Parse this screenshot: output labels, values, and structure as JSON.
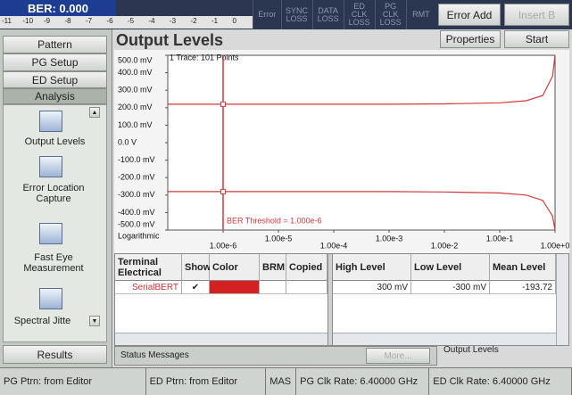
{
  "top": {
    "ber_label": "BER: 0.000",
    "ber_scale": [
      -11,
      -10,
      -9,
      -8,
      -7,
      -6,
      -5,
      -4,
      -3,
      -2,
      -1,
      0
    ],
    "indicators": [
      "Error",
      "SYNC LOSS",
      "DATA LOSS",
      "ED CLK LOSS",
      "PG CLK LOSS",
      "RMT"
    ],
    "buttons": [
      "Error Add",
      "Insert B"
    ]
  },
  "sidebar": {
    "buttons": [
      "Pattern",
      "PG Setup",
      "ED Setup",
      "Analysis"
    ],
    "tools": [
      "Output Levels",
      "Error Location Capture",
      "Fast Eye Measurement",
      "Spectral Jitte"
    ],
    "results": "Results"
  },
  "main": {
    "title": "Output Levels",
    "buttons": [
      "Properties",
      "Start"
    ]
  },
  "plot": {
    "type": "line",
    "trace_info": "1 Trace: 101 Points",
    "xscale": "log",
    "xscale_label": "Logarithmic",
    "threshold": {
      "value": 1e-06,
      "label": "BER Threshold = 1.000e-6"
    },
    "xlim": [
      1e-07,
      1
    ],
    "ylim": [
      -500,
      500
    ],
    "xticks": [
      {
        "value": 1e-06,
        "label": "1.00e-6"
      },
      {
        "value": 1e-05,
        "label": "1.00e-5"
      },
      {
        "value": 0.0001,
        "label": "1.00e-4"
      },
      {
        "value": 0.001,
        "label": "1.00e-3"
      },
      {
        "value": 0.01,
        "label": "1.00e-2"
      },
      {
        "value": 0.1,
        "label": "1.00e-1"
      },
      {
        "value": 1,
        "label": "1.00e+0"
      }
    ],
    "yticks": [
      {
        "value": 500,
        "label": "500.0 mV"
      },
      {
        "value": 400,
        "label": "400.0 mV"
      },
      {
        "value": 300,
        "label": "300.0 mV"
      },
      {
        "value": 200,
        "label": "200.0 mV"
      },
      {
        "value": 100,
        "label": "100.0 mV"
      },
      {
        "value": 0,
        "label": "0.0 V"
      },
      {
        "value": -100,
        "label": "-100.0 mV"
      },
      {
        "value": -200,
        "label": "-200.0 mV"
      },
      {
        "value": -300,
        "label": "-300.0 mV"
      },
      {
        "value": -400,
        "label": "-400.0 mV"
      },
      {
        "value": -500,
        "label": "-500.0 mV"
      }
    ],
    "x": [
      1e-07,
      1e-06,
      1e-05,
      0.0001,
      0.001,
      0.01,
      0.1,
      0.3,
      0.6,
      0.9,
      1
    ],
    "series": [
      {
        "color": "#d03a3a",
        "values": [
          220,
          220,
          220,
          220,
          220,
          222,
          228,
          240,
          270,
          380,
          500
        ]
      },
      {
        "color": "#d03a3a",
        "values": [
          -280,
          -280,
          -280,
          -280,
          -280,
          -282,
          -288,
          -300,
          -330,
          -420,
          -500
        ]
      }
    ],
    "markers": [
      220,
      -280
    ]
  },
  "table": {
    "left_header": [
      "Terminal Electrical",
      "Show",
      "Color",
      "BRM",
      "Copied"
    ],
    "right_header": [
      "High Level",
      "Low Level",
      "Mean Level"
    ],
    "rows": [
      [
        "SerialBERT",
        "✔",
        "",
        "",
        "",
        "300 mV",
        "-300 mV",
        "-193.72"
      ]
    ]
  },
  "status": {
    "label": "Status Messages",
    "more": "More...",
    "view": "Output Levels"
  },
  "footer": [
    "PG Ptrn: from Editor",
    "ED Ptrn: from Editor",
    "MAS",
    "PG Clk Rate: 6.40000 GHz",
    "ED Clk Rate: 6.40000 GHz"
  ]
}
